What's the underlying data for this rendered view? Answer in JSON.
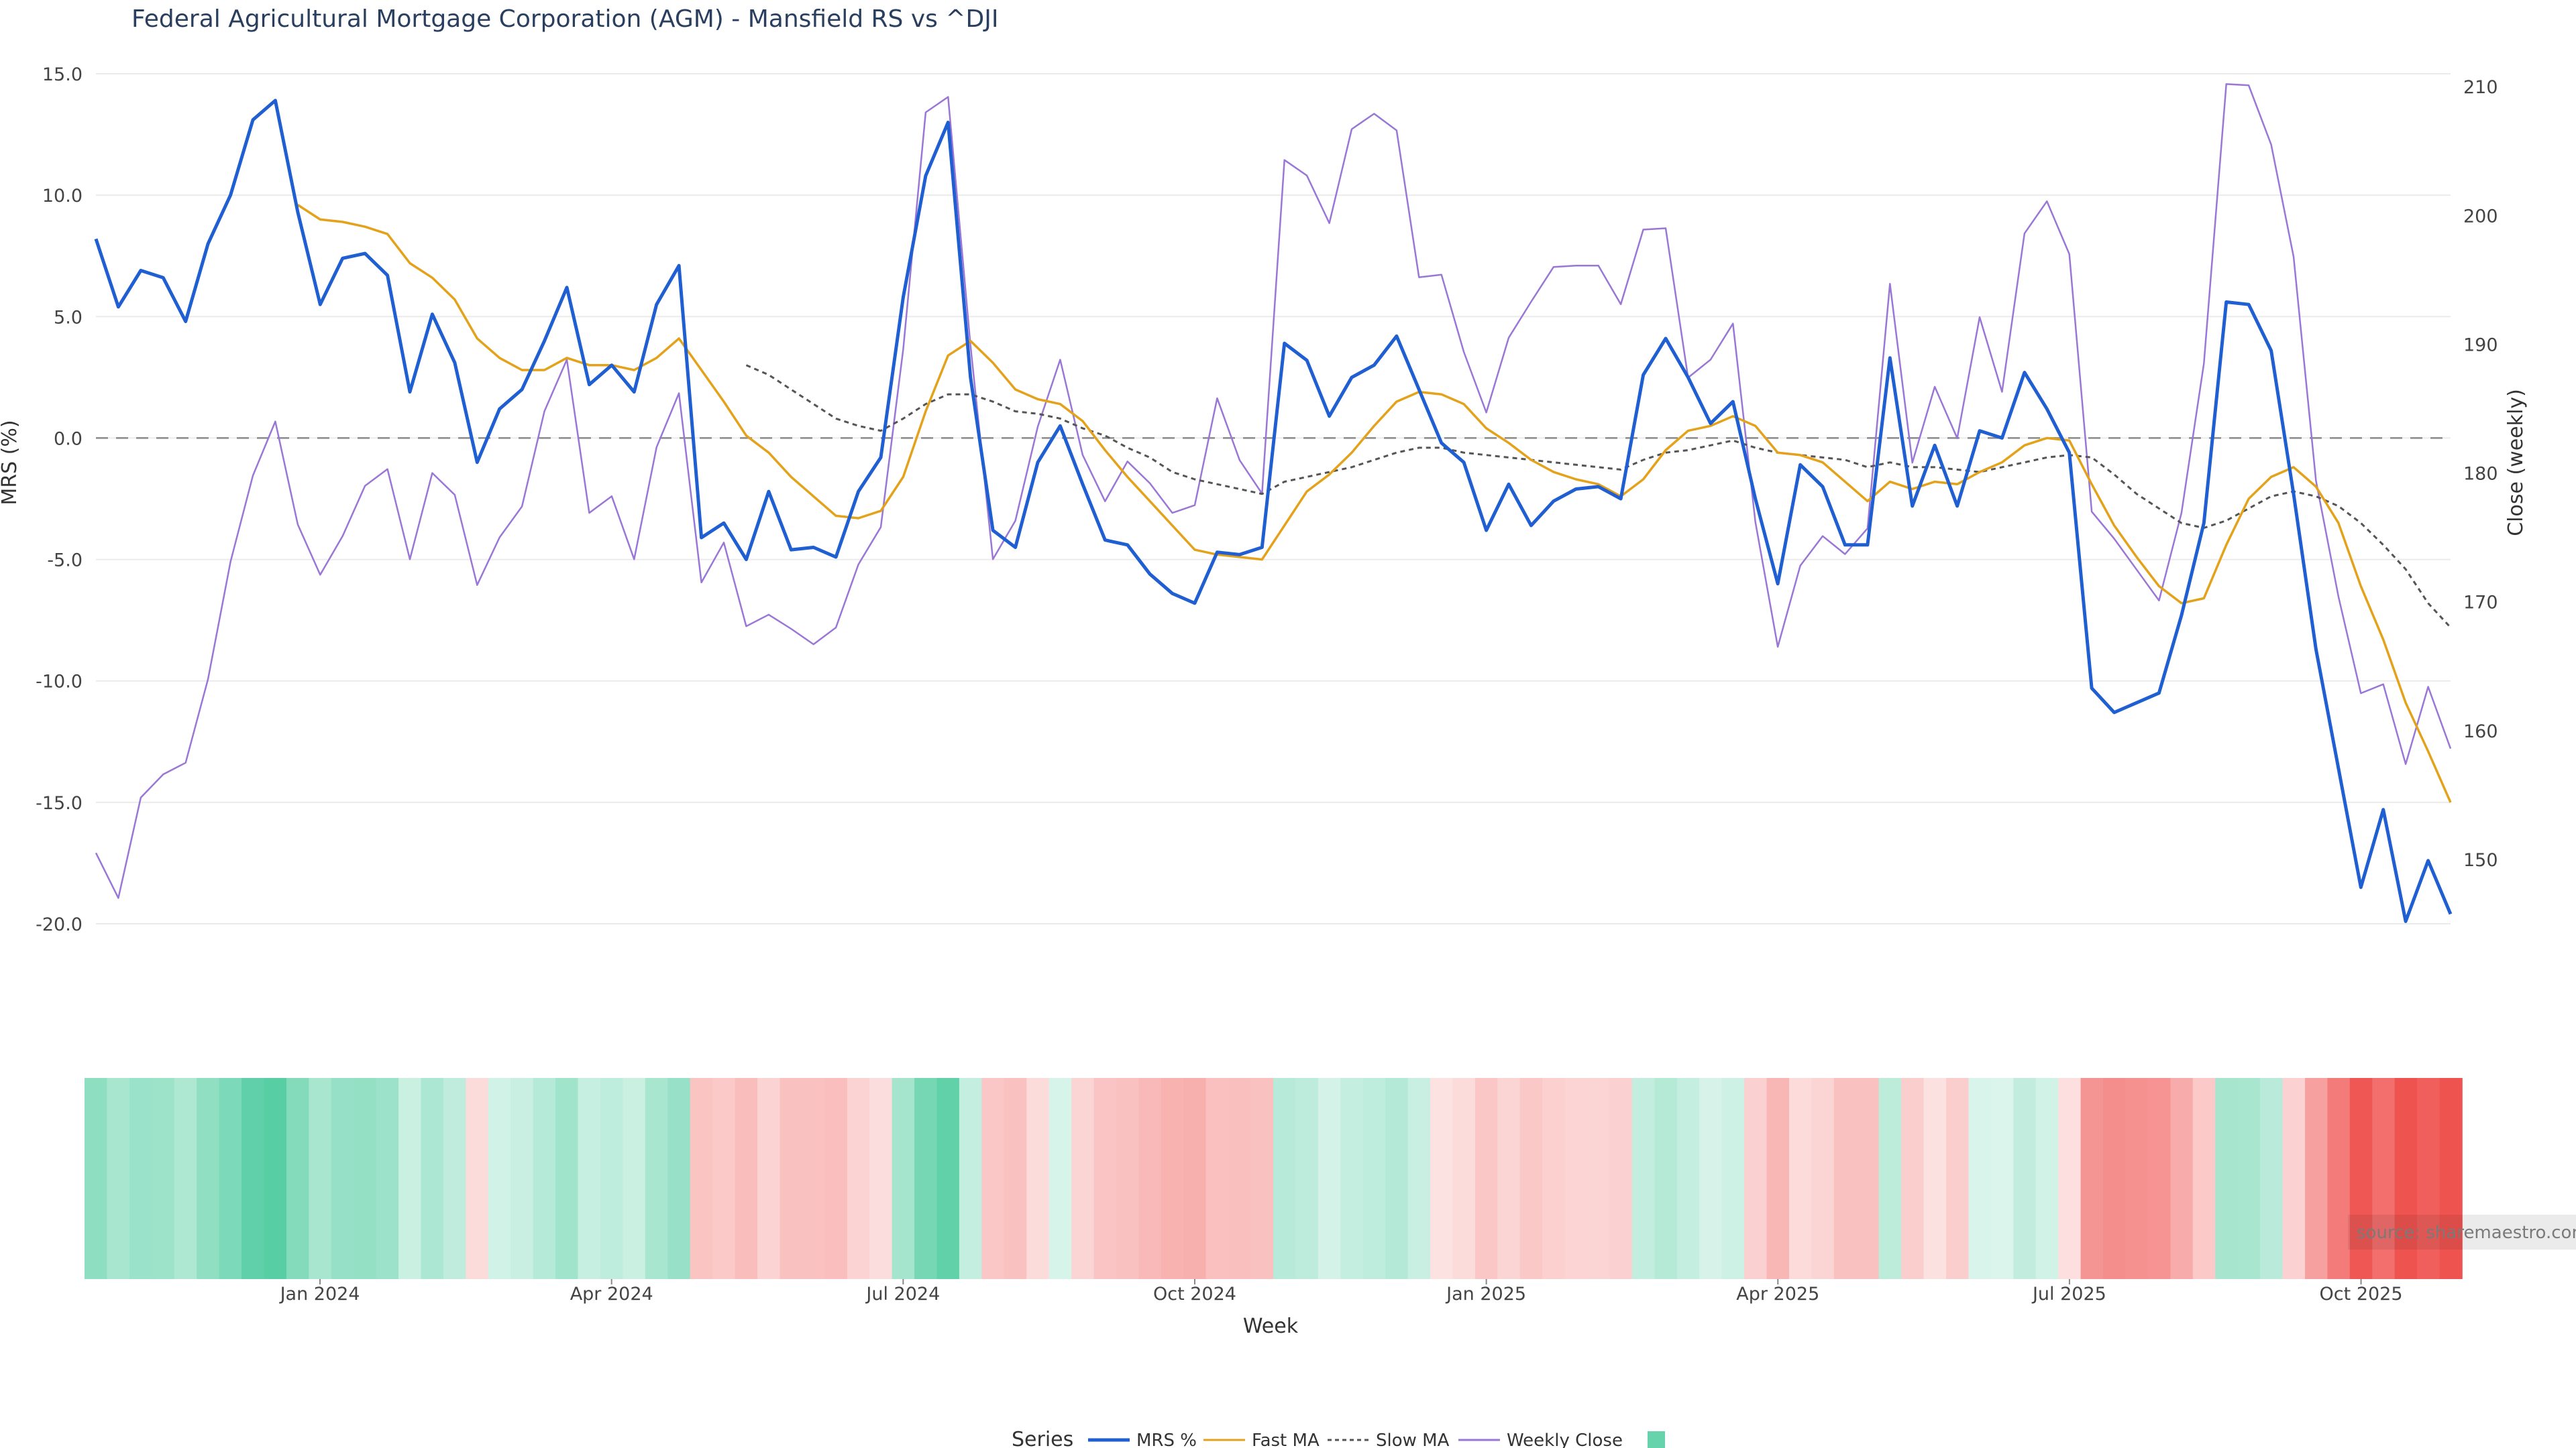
{
  "chart_data": {
    "type": "line",
    "title": "Federal Agricultural Mortgage Corporation (AGM) - Mansfield RS vs ^DJI",
    "xlabel": "Week",
    "ylabel_left": "MRS (%)",
    "ylabel_right": "Close (weekly)",
    "ylim_left": [
      -20,
      15
    ],
    "ylim_right": [
      145,
      211
    ],
    "left_ticks": [
      "15.0",
      "10.0",
      "5.0",
      "0.0",
      "-5.0",
      "-10.0",
      "-15.0",
      "-20.0"
    ],
    "right_ticks": [
      "210",
      "200",
      "190",
      "180",
      "170",
      "160",
      "150"
    ],
    "x_tick_labels": [
      "Jan 2024",
      "Apr 2024",
      "Jul 2024",
      "Oct 2024",
      "Jan 2025",
      "Apr 2025",
      "Jul 2025",
      "Oct 2025"
    ],
    "x_tick_index": [
      10,
      23,
      36,
      49,
      62,
      75,
      88,
      101
    ],
    "weeks": 106,
    "source": "source: sharemaestro.com",
    "legend_title": "Series",
    "zero_line": 0,
    "series": [
      {
        "name": "MRS %",
        "color": "#1f5fd1",
        "axis": "left",
        "values": [
          8.2,
          5.4,
          6.9,
          6.6,
          4.8,
          8.0,
          10.0,
          13.1,
          13.9,
          9.3,
          5.5,
          7.4,
          7.6,
          6.7,
          1.9,
          5.1,
          3.1,
          -1.0,
          1.2,
          2.0,
          4.0,
          6.2,
          2.2,
          3.0,
          1.9,
          5.5,
          7.1,
          -4.1,
          -3.5,
          -5.0,
          -2.2,
          -4.6,
          -4.5,
          -4.9,
          -2.2,
          -0.8,
          5.8,
          10.8,
          13.0,
          2.5,
          -3.8,
          -4.5,
          -1.0,
          0.5,
          -1.9,
          -4.2,
          -4.4,
          -5.6,
          -6.4,
          -6.8,
          -4.7,
          -4.8,
          -4.5,
          3.9,
          3.2,
          0.9,
          2.5,
          3.0,
          4.2,
          2.0,
          -0.2,
          -1.0,
          -3.8,
          -1.9,
          -3.6,
          -2.6,
          -2.1,
          -2.0,
          -2.5,
          2.6,
          4.1,
          2.5,
          0.6,
          1.5,
          -2.5,
          -6.0,
          -1.1,
          -2.0,
          -4.4,
          -4.4,
          3.3,
          -2.8,
          -0.3,
          -2.8,
          0.3,
          0.0,
          2.7,
          1.2,
          -0.6,
          -10.3,
          -11.3,
          -10.9,
          -10.5,
          -7.3,
          -3.5,
          5.6,
          5.5,
          3.6,
          -2.3,
          -8.7,
          -13.6,
          -18.5,
          -15.3,
          -19.9,
          -17.4,
          -19.6
        ]
      },
      {
        "name": "Fast MA",
        "color": "#e3a21a",
        "axis": "left",
        "values": [
          null,
          null,
          null,
          null,
          null,
          null,
          null,
          null,
          null,
          9.6,
          9.0,
          8.9,
          8.7,
          8.4,
          7.2,
          6.6,
          5.7,
          4.1,
          3.3,
          2.8,
          2.8,
          3.3,
          3.0,
          3.0,
          2.8,
          3.3,
          4.1,
          2.8,
          1.5,
          0.1,
          -0.6,
          -1.6,
          -2.4,
          -3.2,
          -3.3,
          -3.0,
          -1.6,
          1.1,
          3.4,
          4.0,
          3.1,
          2.0,
          1.6,
          1.4,
          0.7,
          -0.5,
          -1.6,
          -2.6,
          -3.6,
          -4.6,
          -4.8,
          -4.9,
          -5.0,
          -3.6,
          -2.2,
          -1.5,
          -0.6,
          0.5,
          1.5,
          1.9,
          1.8,
          1.4,
          0.4,
          -0.2,
          -0.9,
          -1.4,
          -1.7,
          -1.9,
          -2.4,
          -1.7,
          -0.5,
          0.3,
          0.5,
          0.9,
          0.5,
          -0.6,
          -0.7,
          -1.0,
          -1.8,
          -2.6,
          -1.8,
          -2.1,
          -1.8,
          -1.9,
          -1.4,
          -1.0,
          -0.3,
          0.0,
          -0.1,
          -1.9,
          -3.6,
          -4.9,
          -6.1,
          -6.8,
          -6.6,
          -4.4,
          -2.5,
          -1.6,
          -1.2,
          -2.0,
          -3.5,
          -6.1,
          -8.3,
          -10.9,
          -12.9,
          -15.0
        ]
      },
      {
        "name": "Slow MA",
        "color": "#555555",
        "axis": "left",
        "dash": "7,6",
        "values": [
          null,
          null,
          null,
          null,
          null,
          null,
          null,
          null,
          null,
          null,
          null,
          null,
          null,
          null,
          null,
          null,
          null,
          null,
          null,
          null,
          null,
          null,
          null,
          null,
          null,
          null,
          null,
          null,
          null,
          3.0,
          2.6,
          2.0,
          1.4,
          0.8,
          0.5,
          0.3,
          0.8,
          1.4,
          1.8,
          1.8,
          1.5,
          1.1,
          1.0,
          0.8,
          0.4,
          0.1,
          -0.4,
          -0.8,
          -1.4,
          -1.7,
          -1.9,
          -2.1,
          -2.3,
          -1.8,
          -1.6,
          -1.4,
          -1.2,
          -0.9,
          -0.6,
          -0.4,
          -0.4,
          -0.6,
          -0.7,
          -0.8,
          -0.9,
          -1.0,
          -1.1,
          -1.2,
          -1.3,
          -0.9,
          -0.6,
          -0.5,
          -0.3,
          -0.1,
          -0.4,
          -0.6,
          -0.7,
          -0.8,
          -0.9,
          -1.2,
          -1.0,
          -1.2,
          -1.2,
          -1.3,
          -1.4,
          -1.2,
          -1.0,
          -0.8,
          -0.7,
          -0.8,
          -1.5,
          -2.3,
          -2.9,
          -3.5,
          -3.7,
          -3.4,
          -2.9,
          -2.4,
          -2.2,
          -2.4,
          -2.8,
          -3.5,
          -4.4,
          -5.4,
          -6.8,
          -7.8
        ]
      },
      {
        "name": "Weekly Close",
        "color": "#9a77d6",
        "axis": "right",
        "values": [
          150.5,
          147.0,
          154.8,
          156.6,
          157.5,
          164.0,
          173.1,
          179.8,
          184.0,
          176.0,
          172.1,
          175.1,
          179.0,
          180.3,
          173.3,
          180.0,
          178.3,
          171.3,
          175.0,
          177.4,
          184.8,
          188.8,
          176.9,
          178.2,
          173.3,
          182.0,
          186.2,
          171.5,
          174.6,
          168.1,
          169.0,
          167.9,
          166.7,
          168.0,
          172.9,
          175.8,
          189.6,
          208.0,
          209.2,
          189.9,
          173.3,
          176.3,
          183.6,
          188.8,
          181.4,
          177.8,
          180.9,
          179.2,
          176.9,
          177.5,
          185.8,
          181.0,
          178.4,
          204.3,
          203.1,
          199.4,
          206.7,
          207.9,
          206.6,
          195.2,
          195.4,
          189.4,
          184.7,
          190.5,
          193.3,
          196.0,
          196.1,
          196.1,
          193.1,
          198.9,
          199.0,
          187.4,
          188.8,
          191.6,
          176.2,
          166.5,
          172.8,
          175.1,
          173.7,
          175.7,
          194.7,
          180.8,
          186.7,
          182.7,
          192.1,
          186.3,
          198.6,
          201.1,
          197.0,
          177.0,
          174.9,
          172.5,
          170.1,
          176.9,
          188.5,
          210.2,
          210.1,
          205.5,
          196.8,
          179.4,
          170.4,
          162.9,
          163.6,
          157.4,
          163.4,
          158.6
        ]
      }
    ],
    "heatmap": {
      "description_source": "MRS % per week",
      "scale_pos": "#26c08a",
      "scale_neg": "#ef5350"
    },
    "legend": [
      "MRS %",
      "Fast MA",
      "Slow MA",
      "Weekly Close"
    ]
  }
}
